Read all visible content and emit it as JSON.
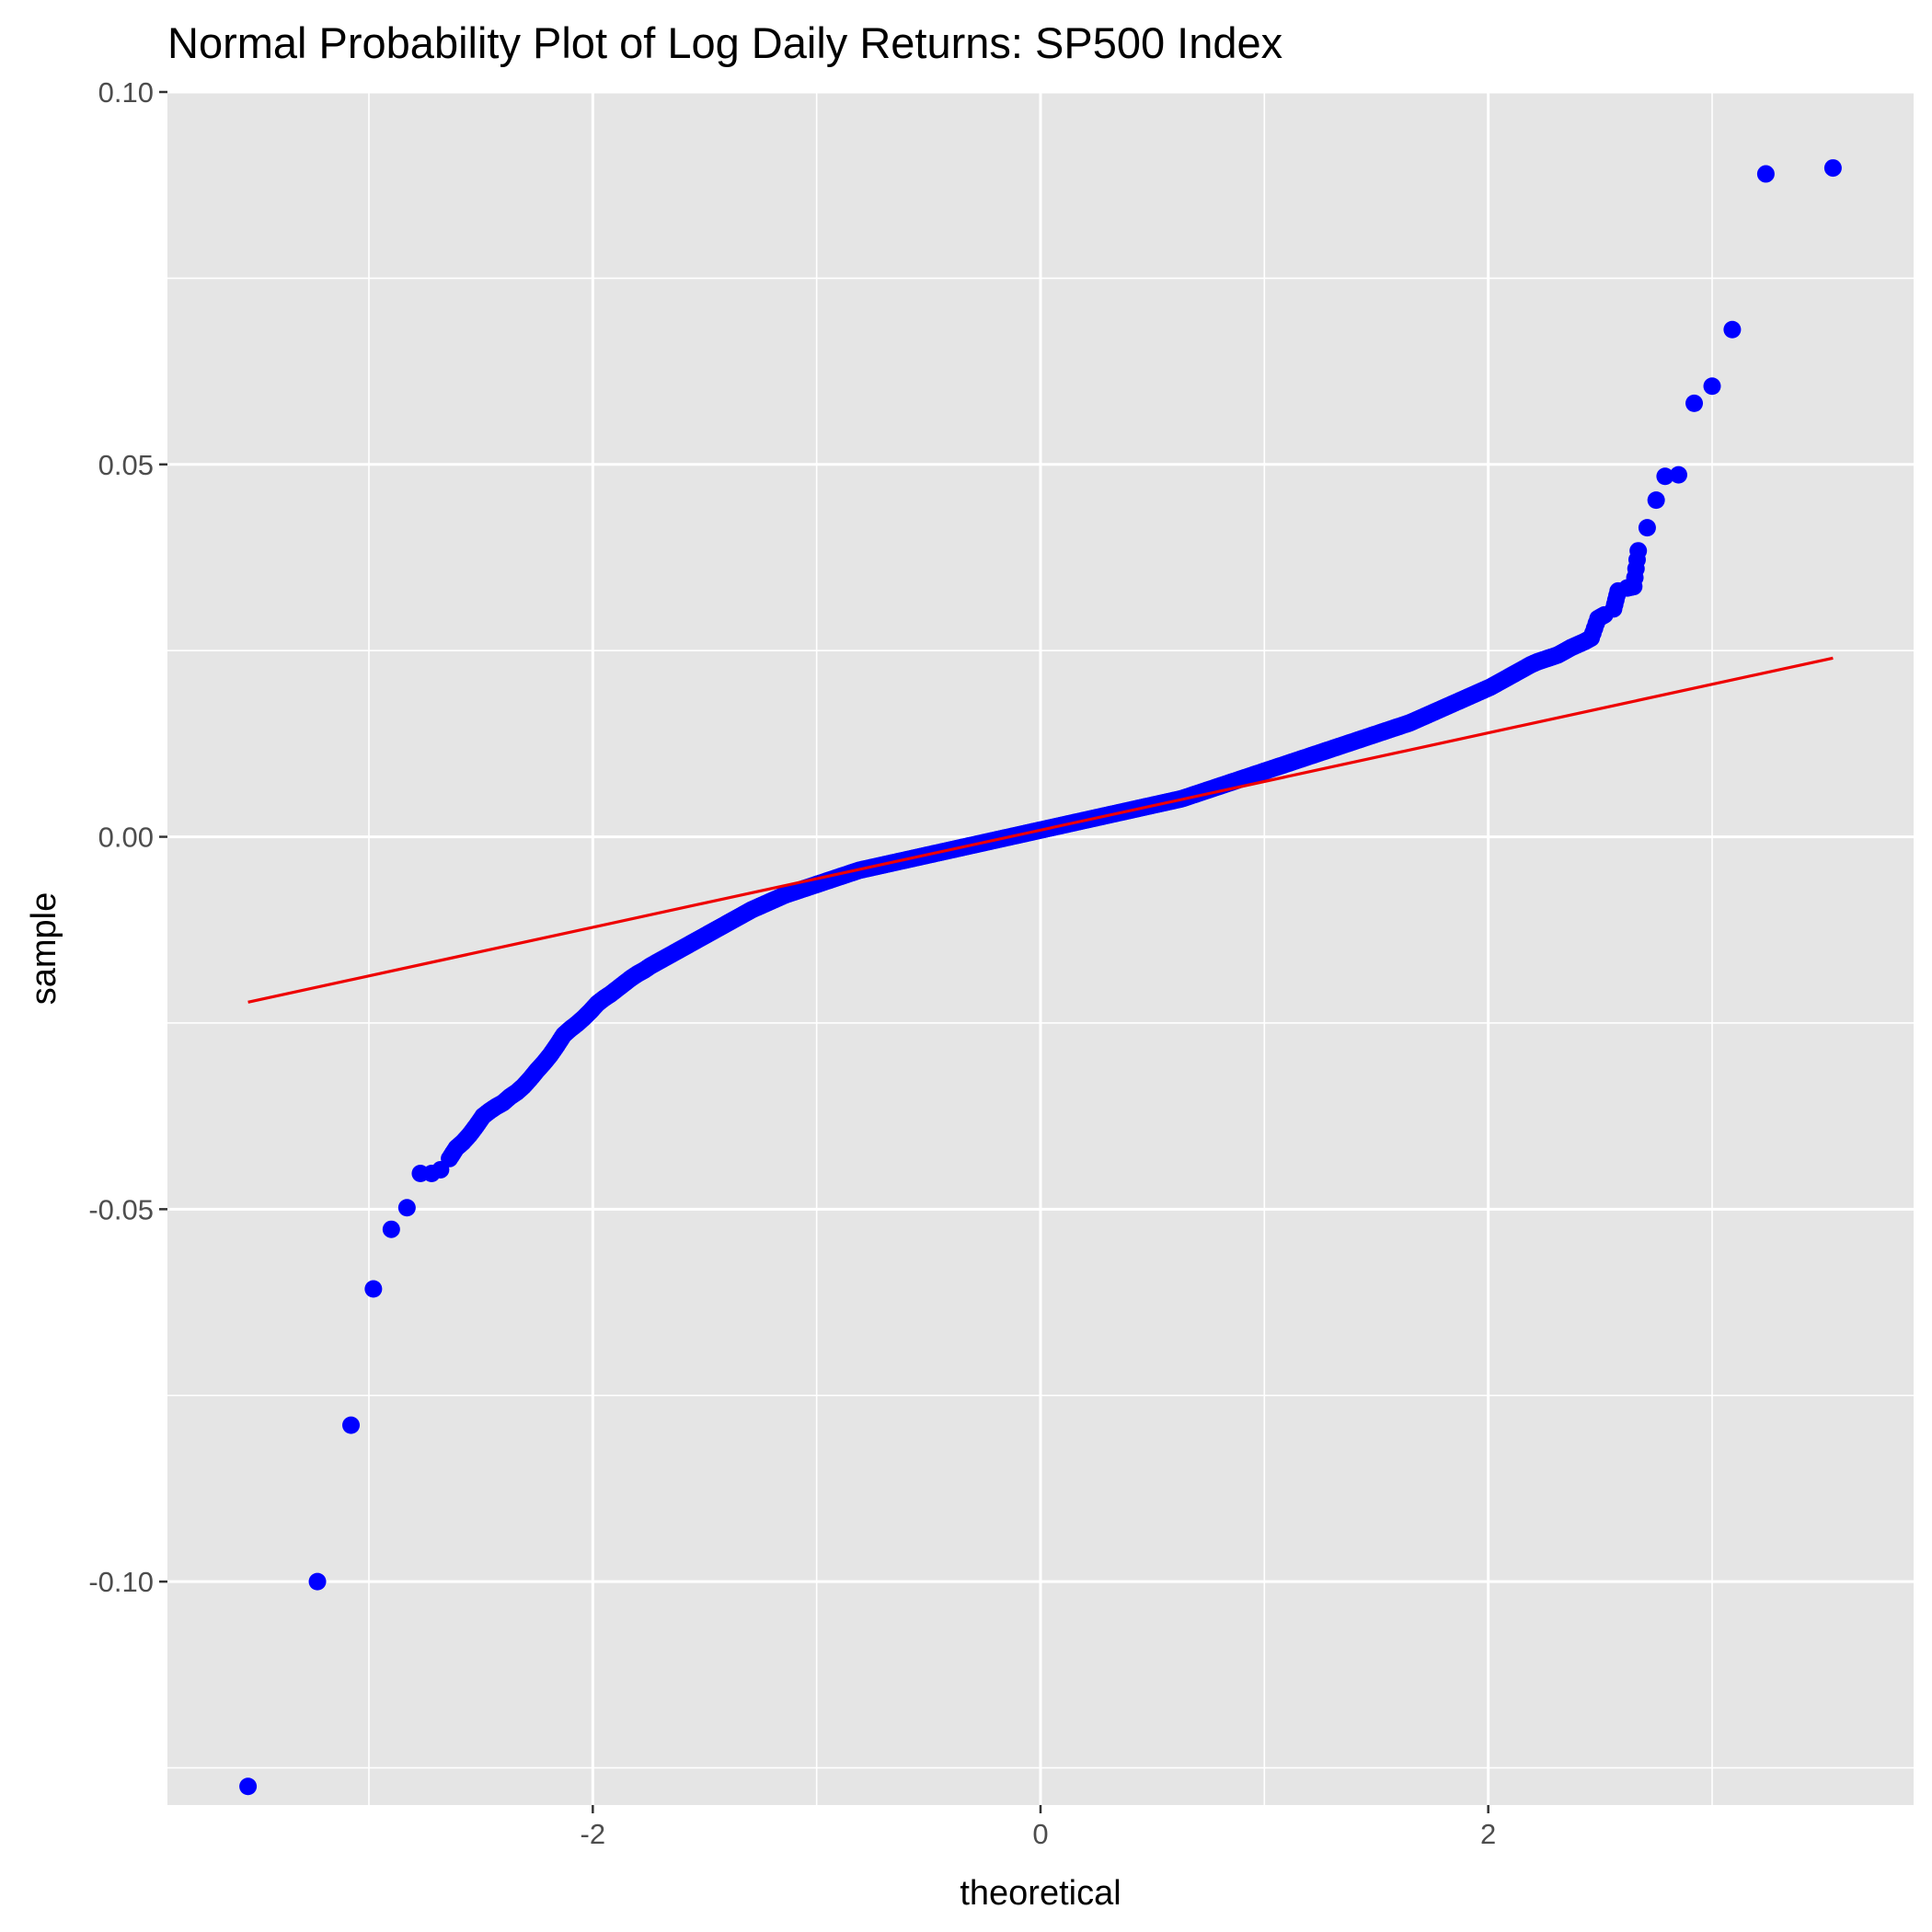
{
  "chart_data": {
    "type": "scatter",
    "title": "Normal Probability Plot of Log Daily Returns: SP500 Index",
    "xlabel": "theoretical",
    "ylabel": "sample",
    "xlim": [
      -3.9,
      3.9
    ],
    "ylim": [
      -0.13,
      0.1
    ],
    "x_ticks": [
      -2,
      0,
      2
    ],
    "x_tick_labels": [
      "-2",
      "0",
      "2"
    ],
    "y_ticks": [
      -0.1,
      -0.05,
      0.0,
      0.05,
      0.1
    ],
    "y_tick_labels": [
      "-0.10",
      "-0.05",
      "0.00",
      "0.05",
      "0.10"
    ],
    "grid": true,
    "legend": "none",
    "colors": {
      "panel_background": "#e5e5e5",
      "grid": "#ffffff",
      "points": "#0000ff",
      "reference_line": "#ee0000"
    },
    "series": [
      {
        "type": "scatter",
        "points": [
          [
            -3.54,
            -0.1275
          ],
          [
            -3.23,
            -0.1
          ],
          [
            -3.08,
            -0.079
          ],
          [
            -2.98,
            -0.0607
          ],
          [
            -2.9,
            -0.0527
          ],
          [
            -2.83,
            -0.0498
          ],
          [
            -2.77,
            -0.0452
          ],
          [
            -2.72,
            -0.0452
          ],
          [
            -2.68,
            -0.0447
          ],
          [
            -2.64,
            -0.0432
          ],
          [
            -2.61,
            -0.0418
          ],
          [
            -2.58,
            -0.041
          ],
          [
            -2.55,
            -0.04
          ],
          [
            -2.52,
            -0.0388
          ],
          [
            -2.49,
            -0.0375
          ],
          [
            -2.46,
            -0.0368
          ],
          [
            -2.43,
            -0.0362
          ],
          [
            -2.4,
            -0.0357
          ],
          [
            -2.37,
            -0.0349
          ],
          [
            -2.34,
            -0.0343
          ],
          [
            -2.31,
            -0.0335
          ],
          [
            -2.28,
            -0.0325
          ],
          [
            -2.25,
            -0.0314
          ],
          [
            -2.22,
            -0.0304
          ],
          [
            -2.19,
            -0.0293
          ],
          [
            -2.16,
            -0.028
          ],
          [
            -2.13,
            -0.0266
          ],
          [
            -2.1,
            -0.0258
          ],
          [
            -2.07,
            -0.0251
          ],
          [
            -2.04,
            -0.0243
          ],
          [
            -2.01,
            -0.0234
          ],
          [
            -1.98,
            -0.0224
          ],
          [
            -1.95,
            -0.0217
          ],
          [
            -1.92,
            -0.0211
          ],
          [
            -1.89,
            -0.0204
          ],
          [
            -1.86,
            -0.0197
          ],
          [
            -1.83,
            -0.019
          ],
          [
            -1.8,
            -0.0184
          ],
          [
            -1.77,
            -0.0179
          ],
          [
            -1.74,
            -0.0173
          ],
          [
            -1.71,
            -0.0168
          ],
          [
            -1.68,
            -0.0163
          ],
          [
            -1.65,
            -0.0158
          ],
          [
            -1.62,
            -0.0153
          ],
          [
            -1.59,
            -0.0148
          ],
          [
            -1.56,
            -0.0143
          ],
          [
            -1.53,
            -0.0138
          ],
          [
            -1.5,
            -0.0133
          ],
          [
            -1.47,
            -0.0128
          ],
          [
            -1.44,
            -0.0123
          ],
          [
            -1.41,
            -0.0118
          ],
          [
            -1.38,
            -0.0113
          ],
          [
            -1.35,
            -0.0108
          ],
          [
            -1.32,
            -0.0103
          ],
          [
            -1.29,
            -0.0098
          ],
          [
            -1.26,
            -0.0094
          ],
          [
            -1.23,
            -0.009
          ],
          [
            -1.2,
            -0.0086
          ],
          [
            -1.17,
            -0.0082
          ],
          [
            -1.14,
            -0.0078
          ],
          [
            -1.11,
            -0.0075
          ],
          [
            -1.08,
            -0.0072
          ],
          [
            -1.05,
            -0.0069
          ],
          [
            -1.02,
            -0.0066
          ],
          [
            -0.99,
            -0.0063
          ],
          [
            -0.96,
            -0.006
          ],
          [
            -0.93,
            -0.0057
          ],
          [
            -0.9,
            -0.0054
          ],
          [
            -0.87,
            -0.0051
          ],
          [
            -0.84,
            -0.0048
          ],
          [
            -0.81,
            -0.0045
          ],
          [
            -0.78,
            -0.0043
          ],
          [
            -0.75,
            -0.0041
          ],
          [
            -0.72,
            -0.0039
          ],
          [
            -0.69,
            -0.0037
          ],
          [
            -0.66,
            -0.0035
          ],
          [
            -0.63,
            -0.0033
          ],
          [
            -0.6,
            -0.0031
          ],
          [
            -0.57,
            -0.0029
          ],
          [
            -0.54,
            -0.0027
          ],
          [
            -0.51,
            -0.0025
          ],
          [
            -0.48,
            -0.0023
          ],
          [
            -0.45,
            -0.0021
          ],
          [
            -0.42,
            -0.0019
          ],
          [
            -0.39,
            -0.0017
          ],
          [
            -0.36,
            -0.0015
          ],
          [
            -0.33,
            -0.0013
          ],
          [
            -0.3,
            -0.0011
          ],
          [
            -0.27,
            -0.0009
          ],
          [
            -0.24,
            -0.0007
          ],
          [
            -0.21,
            -0.0005
          ],
          [
            -0.18,
            -0.0003
          ],
          [
            -0.15,
            -0.0001
          ],
          [
            -0.12,
            0.0001
          ],
          [
            -0.09,
            0.0003
          ],
          [
            -0.06,
            0.0005
          ],
          [
            -0.03,
            0.0007
          ],
          [
            0.0,
            0.0009
          ],
          [
            0.03,
            0.0011
          ],
          [
            0.06,
            0.0013
          ],
          [
            0.09,
            0.0015
          ],
          [
            0.12,
            0.0017
          ],
          [
            0.15,
            0.0019
          ],
          [
            0.18,
            0.0021
          ],
          [
            0.21,
            0.0023
          ],
          [
            0.24,
            0.0025
          ],
          [
            0.27,
            0.0027
          ],
          [
            0.3,
            0.0029
          ],
          [
            0.33,
            0.0031
          ],
          [
            0.36,
            0.0033
          ],
          [
            0.39,
            0.0035
          ],
          [
            0.42,
            0.0037
          ],
          [
            0.45,
            0.0039
          ],
          [
            0.48,
            0.0041
          ],
          [
            0.51,
            0.0043
          ],
          [
            0.54,
            0.0045
          ],
          [
            0.57,
            0.0047
          ],
          [
            0.6,
            0.0049
          ],
          [
            0.63,
            0.0051
          ],
          [
            0.66,
            0.0054
          ],
          [
            0.69,
            0.0057
          ],
          [
            0.72,
            0.006
          ],
          [
            0.75,
            0.0063
          ],
          [
            0.78,
            0.0066
          ],
          [
            0.81,
            0.0069
          ],
          [
            0.84,
            0.0072
          ],
          [
            0.87,
            0.0075
          ],
          [
            0.9,
            0.0078
          ],
          [
            0.93,
            0.0081
          ],
          [
            0.96,
            0.0084
          ],
          [
            0.99,
            0.0087
          ],
          [
            1.02,
            0.009
          ],
          [
            1.05,
            0.0093
          ],
          [
            1.08,
            0.0096
          ],
          [
            1.11,
            0.0099
          ],
          [
            1.14,
            0.0102
          ],
          [
            1.17,
            0.0105
          ],
          [
            1.2,
            0.0108
          ],
          [
            1.23,
            0.0111
          ],
          [
            1.26,
            0.0114
          ],
          [
            1.29,
            0.0117
          ],
          [
            1.32,
            0.012
          ],
          [
            1.35,
            0.0123
          ],
          [
            1.38,
            0.0126
          ],
          [
            1.41,
            0.0129
          ],
          [
            1.44,
            0.0132
          ],
          [
            1.47,
            0.0135
          ],
          [
            1.5,
            0.0138
          ],
          [
            1.53,
            0.0141
          ],
          [
            1.56,
            0.0144
          ],
          [
            1.59,
            0.0147
          ],
          [
            1.62,
            0.015
          ],
          [
            1.65,
            0.0153
          ],
          [
            1.68,
            0.0157
          ],
          [
            1.71,
            0.0161
          ],
          [
            1.74,
            0.0165
          ],
          [
            1.77,
            0.0169
          ],
          [
            1.8,
            0.0173
          ],
          [
            1.83,
            0.0177
          ],
          [
            1.86,
            0.0181
          ],
          [
            1.89,
            0.0185
          ],
          [
            1.92,
            0.0189
          ],
          [
            1.95,
            0.0193
          ],
          [
            1.98,
            0.0197
          ],
          [
            2.01,
            0.0201
          ],
          [
            2.04,
            0.0206
          ],
          [
            2.07,
            0.0211
          ],
          [
            2.1,
            0.0216
          ],
          [
            2.13,
            0.0221
          ],
          [
            2.16,
            0.0226
          ],
          [
            2.19,
            0.0231
          ],
          [
            2.22,
            0.0235
          ],
          [
            2.25,
            0.0238
          ],
          [
            2.28,
            0.0241
          ],
          [
            2.31,
            0.0244
          ],
          [
            2.34,
            0.0249
          ],
          [
            2.37,
            0.0254
          ],
          [
            2.4,
            0.0258
          ],
          [
            2.43,
            0.0262
          ],
          [
            2.46,
            0.0267
          ],
          [
            2.49,
            0.0293
          ],
          [
            2.52,
            0.0298
          ],
          [
            2.56,
            0.0306
          ],
          [
            2.58,
            0.033
          ],
          [
            2.62,
            0.0334
          ],
          [
            2.65,
            0.0336
          ],
          [
            2.67,
            0.0384
          ],
          [
            2.71,
            0.0415
          ],
          [
            2.75,
            0.0452
          ],
          [
            2.79,
            0.0484
          ],
          [
            2.85,
            0.0486
          ],
          [
            2.92,
            0.0582
          ],
          [
            3.0,
            0.0605
          ],
          [
            3.09,
            0.0681
          ],
          [
            3.24,
            0.089
          ],
          [
            3.54,
            0.0898
          ]
        ]
      },
      {
        "type": "line",
        "points": [
          [
            -3.54,
            -0.0222
          ],
          [
            3.54,
            0.024
          ]
        ]
      }
    ]
  }
}
